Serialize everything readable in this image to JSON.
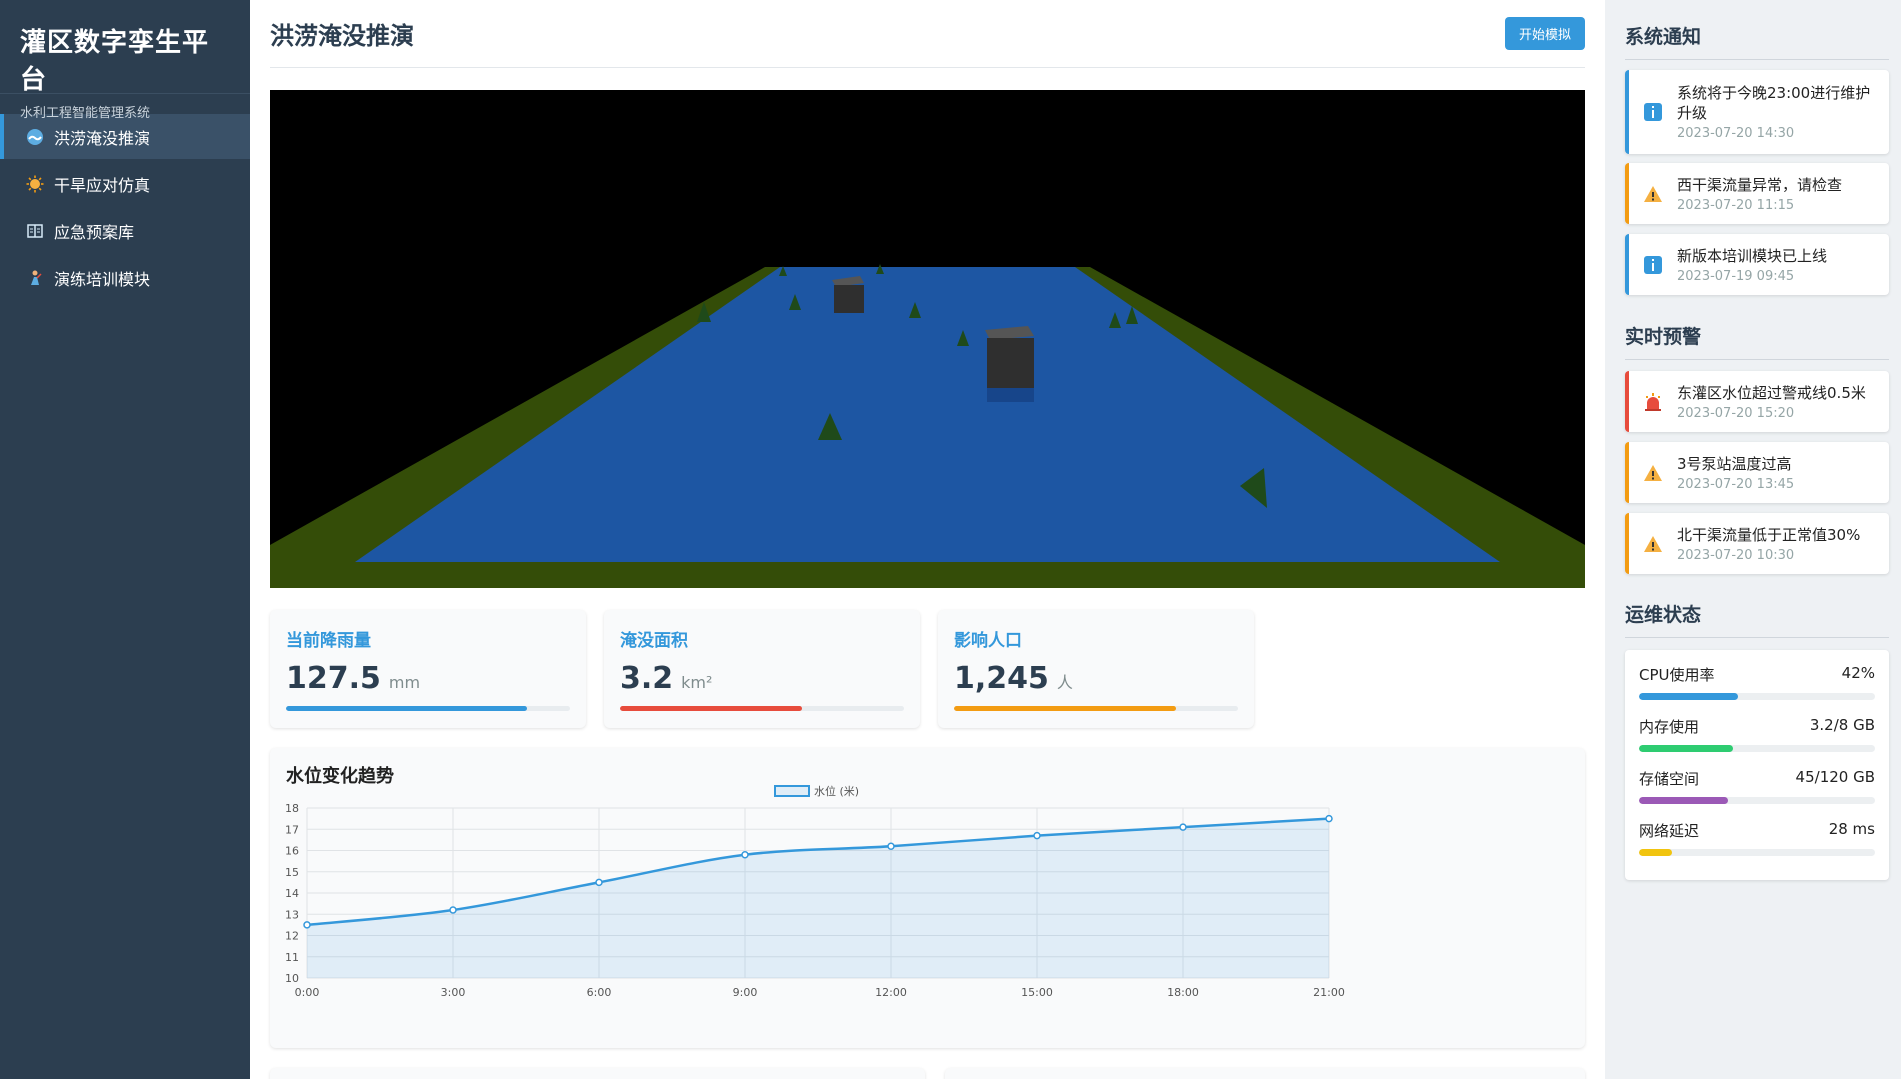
{
  "sidebar": {
    "title": "灌区数字孪生平台",
    "subtitle": "水利工程智能管理系统",
    "items": [
      {
        "label": "洪涝淹没推演",
        "icon": "wave-icon"
      },
      {
        "label": "干旱应对仿真",
        "icon": "sun-icon"
      },
      {
        "label": "应急预案库",
        "icon": "book-icon"
      },
      {
        "label": "演练培训模块",
        "icon": "trainer-icon"
      }
    ]
  },
  "header": {
    "title": "洪涝淹没推演",
    "start_button": "开始模拟"
  },
  "stats": [
    {
      "label": "当前降雨量",
      "value": "127.5",
      "unit": "mm",
      "progress": 0.85,
      "color": "#3498db"
    },
    {
      "label": "淹没面积",
      "value": "3.2",
      "unit": "km²",
      "progress": 0.64,
      "color": "#e74c3c"
    },
    {
      "label": "影响人口",
      "value": "1,245",
      "unit": "人",
      "progress": 0.78,
      "color": "#f39c12"
    }
  ],
  "chart": {
    "title": "水位变化趋势"
  },
  "chart_data": {
    "type": "line",
    "title": "水位变化趋势",
    "x": [
      "0:00",
      "3:00",
      "6:00",
      "9:00",
      "12:00",
      "15:00",
      "18:00",
      "21:00"
    ],
    "series": [
      {
        "name": "水位 (米)",
        "values": [
          12.5,
          13.2,
          14.5,
          15.8,
          16.2,
          16.7,
          17.1,
          17.5
        ],
        "color": "#3498db"
      }
    ],
    "ylim": [
      10,
      18
    ],
    "yticks": [
      "10",
      "11",
      "12",
      "13",
      "14",
      "15",
      "16",
      "17",
      "18"
    ],
    "legend": "top-center",
    "grid": true,
    "area_fill": true
  },
  "right": {
    "notices_title": "系统通知",
    "notices": [
      {
        "text": "系统将于今晚23:00进行维护升级",
        "time": "2023-07-20 14:30",
        "level": "info"
      },
      {
        "text": "西干渠流量异常，请检查",
        "time": "2023-07-20 11:15",
        "level": "warn"
      },
      {
        "text": "新版本培训模块已上线",
        "time": "2023-07-19 09:45",
        "level": "info"
      }
    ],
    "alerts_title": "实时预警",
    "alerts": [
      {
        "text": "东灌区水位超过警戒线0.5米",
        "time": "2023-07-20 15:20",
        "level": "danger"
      },
      {
        "text": "3号泵站温度过高",
        "time": "2023-07-20 13:45",
        "level": "warn"
      },
      {
        "text": "北干渠流量低于正常值30%",
        "time": "2023-07-20 10:30",
        "level": "warn"
      }
    ],
    "ops_title": "运维状态",
    "ops": [
      {
        "label": "CPU使用率",
        "value": "42%",
        "ratio": 0.42,
        "color": "#3498db"
      },
      {
        "label": "内存使用",
        "value": "3.2/8 GB",
        "ratio": 0.4,
        "color": "#2ecc71"
      },
      {
        "label": "存储空间",
        "value": "45/120 GB",
        "ratio": 0.375,
        "color": "#9b59b6"
      },
      {
        "label": "网络延迟",
        "value": "28 ms",
        "ratio": 0.14,
        "color": "#f1c40f"
      }
    ]
  }
}
